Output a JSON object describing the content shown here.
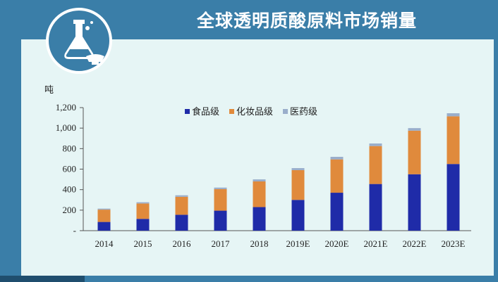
{
  "banner": {
    "title": "全球透明质酸原料市场销量"
  },
  "colors": {
    "banner_bg": "#3a7ea8",
    "panel_bg": "#e6f5f5",
    "food": "#1f2ba8",
    "cosmetic": "#e08a3c",
    "pharma": "#9aaecb"
  },
  "icons": {
    "logo": "flask-icon"
  },
  "chart_data": {
    "type": "bar",
    "stacked": true,
    "categories": [
      "2014",
      "2015",
      "2016",
      "2017",
      "2018",
      "2019E",
      "2020E",
      "2021E",
      "2022E",
      "2023E"
    ],
    "series": [
      {
        "name": "食品级",
        "values": [
          85,
          115,
          155,
          195,
          230,
          300,
          370,
          455,
          550,
          650
        ]
      },
      {
        "name": "化妆品级",
        "values": [
          120,
          150,
          175,
          210,
          250,
          290,
          325,
          370,
          425,
          465
        ]
      },
      {
        "name": "医药级",
        "values": [
          10,
          12,
          15,
          15,
          20,
          20,
          25,
          25,
          25,
          30
        ]
      }
    ],
    "ylabel": "吨",
    "ylim": [
      0,
      1200
    ],
    "yticks": [
      0,
      200,
      400,
      600,
      800,
      1000,
      1200
    ],
    "ytick_labels": [
      "-",
      "200",
      "400",
      "600",
      "800",
      "1,000",
      "1,200"
    ],
    "grid": false,
    "legend": "top-center"
  }
}
